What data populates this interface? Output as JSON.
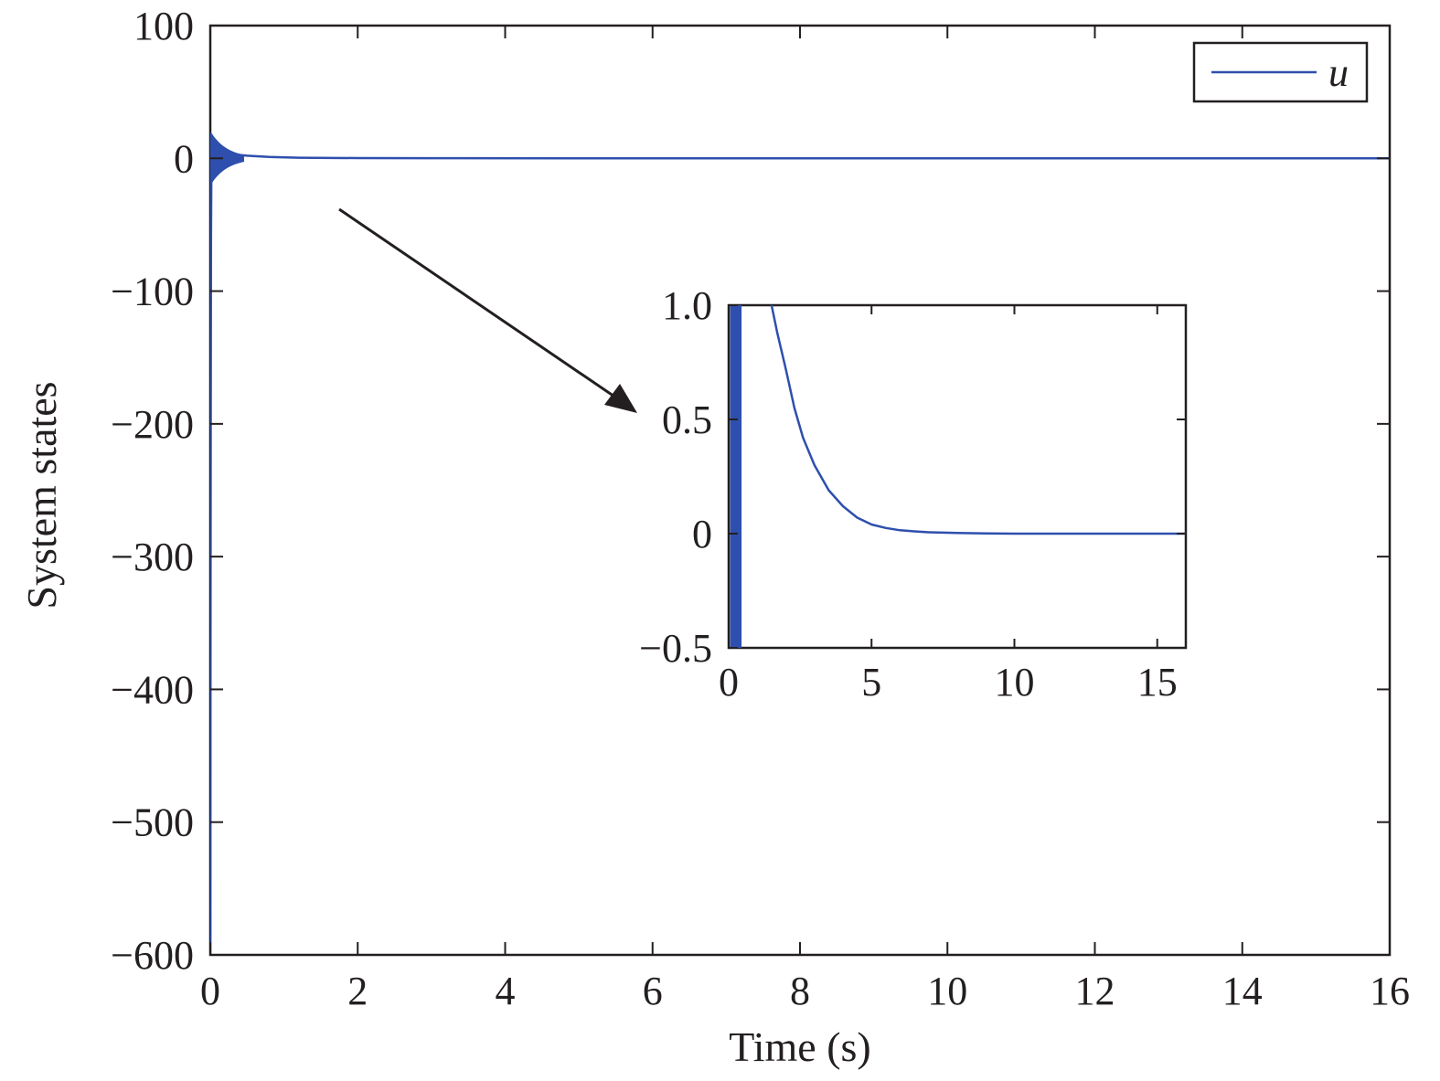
{
  "colors": {
    "series": "#2e4fad",
    "axes": "#231f20",
    "background": "#ffffff"
  },
  "chart_data": [
    {
      "type": "line",
      "xlabel": "Time (s)",
      "ylabel": "System states",
      "xlim": [
        0,
        16
      ],
      "ylim": [
        -600,
        100
      ],
      "xticks": [
        0,
        2,
        4,
        6,
        8,
        10,
        12,
        14,
        16
      ],
      "yticks": [
        100,
        0,
        -100,
        -200,
        -300,
        -400,
        -500,
        -600
      ],
      "xtick_labels": [
        "0",
        "2",
        "4",
        "6",
        "8",
        "10",
        "12",
        "14",
        "16"
      ],
      "ytick_labels": [
        "100",
        "0",
        "−100",
        "−200",
        "−300",
        "−400",
        "−500",
        "−600"
      ],
      "grid": false,
      "legend": {
        "placement": "top-right",
        "entries": [
          "u"
        ]
      },
      "series": [
        {
          "name": "u",
          "x": [
            0,
            0.003,
            0.006,
            0.01,
            0.015,
            0.02,
            0.03,
            0.05,
            0.08,
            0.12,
            0.2,
            0.3,
            0.5,
            0.8,
            1.2,
            2,
            3,
            5,
            8,
            12,
            16
          ],
          "y": [
            -600,
            -420,
            -200,
            -60,
            -10,
            8,
            16,
            12,
            8,
            6,
            4,
            3,
            2,
            1,
            0.5,
            0.2,
            0.1,
            0,
            0,
            0,
            0
          ]
        }
      ]
    },
    {
      "type": "line",
      "inset": true,
      "xlim": [
        0,
        16
      ],
      "ylim": [
        -0.5,
        1.0
      ],
      "xticks": [
        0,
        5,
        10,
        15
      ],
      "yticks": [
        1.0,
        0.5,
        0,
        -0.5
      ],
      "xtick_labels": [
        "0",
        "5",
        "10",
        "15"
      ],
      "ytick_labels": [
        "1.0",
        "0.5",
        "0",
        "−0.5"
      ],
      "grid": false,
      "series": [
        {
          "name": "",
          "x": [
            1.5,
            1.7,
            2.0,
            2.3,
            2.6,
            3.0,
            3.5,
            4.0,
            4.5,
            5.0,
            5.5,
            6.0,
            6.5,
            7.0,
            8.0,
            9.0,
            10.0,
            12.0,
            16.0
          ],
          "y": [
            1.0,
            0.88,
            0.72,
            0.55,
            0.42,
            0.3,
            0.19,
            0.12,
            0.07,
            0.04,
            0.025,
            0.015,
            0.01,
            0.006,
            0.003,
            0.001,
            0,
            0,
            0
          ]
        }
      ]
    }
  ]
}
